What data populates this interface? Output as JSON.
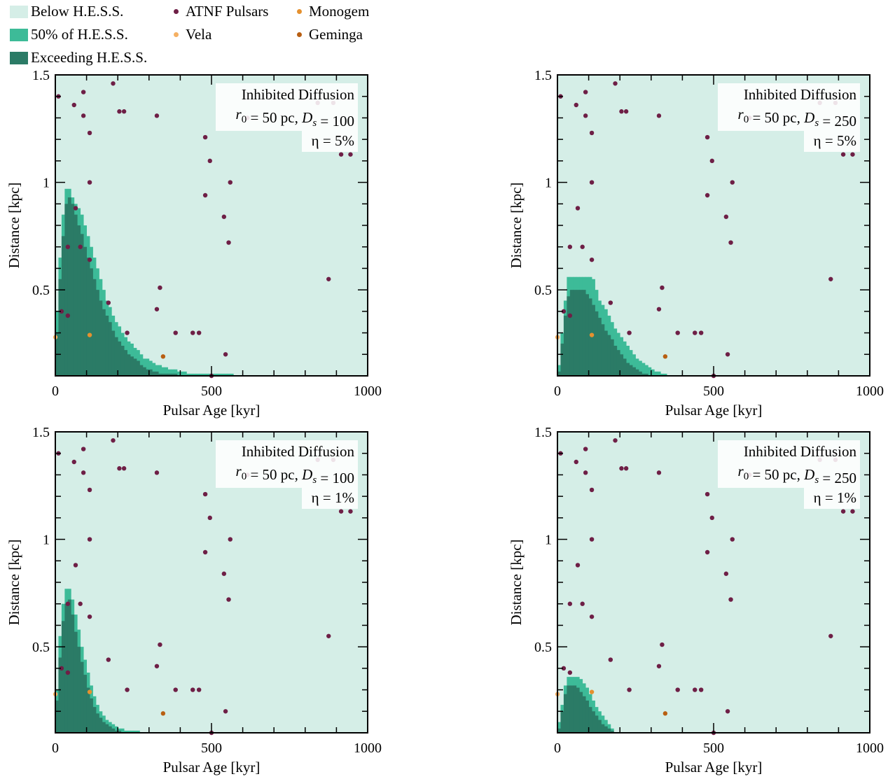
{
  "legend": {
    "below_label": "Below H.E.S.S.",
    "half_label": "50% of H.E.S.S.",
    "exceed_label": "Exceeding H.E.S.S.",
    "atnf_label": "ATNF Pulsars",
    "vela_label": "Vela",
    "monogem_label": "Monogem",
    "geminga_label": "Geminga"
  },
  "colors": {
    "below": "#d5eee7",
    "half": "#3dbb98",
    "exceed": "#2b7b66",
    "atnf": "#6e1f46",
    "vela": "#f5b063",
    "monogem": "#e5912f",
    "geminga": "#b85f12"
  },
  "shared": {
    "xlabel": "Pulsar Age [kyr]",
    "ylabel": "Distance [kpc]",
    "xticks": [
      0,
      500,
      1000
    ],
    "yticks": [
      0.5,
      1,
      1.5
    ],
    "xlim": [
      0,
      1000
    ],
    "ylim": [
      0.1,
      1.5
    ],
    "atnf_pulsars": [
      [
        10,
        1.4
      ],
      [
        60,
        1.36
      ],
      [
        90,
        1.42
      ],
      [
        90,
        1.31
      ],
      [
        110,
        1.23
      ],
      [
        185,
        1.46
      ],
      [
        205,
        1.33
      ],
      [
        220,
        1.33
      ],
      [
        325,
        1.31
      ],
      [
        480,
        1.21
      ],
      [
        495,
        1.1
      ],
      [
        560,
        1.0
      ],
      [
        110,
        1.0
      ],
      [
        480,
        0.94
      ],
      [
        65,
        0.88
      ],
      [
        540,
        0.84
      ],
      [
        555,
        0.72
      ],
      [
        40,
        0.7
      ],
      [
        80,
        0.7
      ],
      [
        110,
        0.64
      ],
      [
        875,
        0.55
      ],
      [
        335,
        0.51
      ],
      [
        170,
        0.44
      ],
      [
        325,
        0.41
      ],
      [
        20,
        0.4
      ],
      [
        40,
        0.38
      ],
      [
        230,
        0.3
      ],
      [
        385,
        0.3
      ],
      [
        440,
        0.3
      ],
      [
        460,
        0.3
      ],
      [
        545,
        0.2
      ],
      [
        500,
        0.09
      ],
      [
        615,
        1.3
      ],
      [
        840,
        1.37
      ],
      [
        890,
        1.37
      ],
      [
        915,
        1.13
      ],
      [
        945,
        1.13
      ]
    ],
    "vela": [
      [
        0,
        0.28
      ]
    ],
    "monogem": [
      [
        110,
        0.29
      ]
    ],
    "geminga": [
      [
        345,
        0.19
      ]
    ]
  },
  "chart_data": [
    {
      "type": "area",
      "title": "Inhibited Diffusion",
      "params": [
        "r",
        "0",
        " = 50 pc, ",
        "D",
        "s",
        " = 100"
      ],
      "eta": "η = 5%",
      "x": [
        10,
        20,
        30,
        40,
        50,
        60,
        70,
        80,
        90,
        100,
        110,
        120,
        130,
        140,
        150,
        160,
        170,
        180,
        190,
        200,
        210,
        220,
        230,
        240,
        250,
        260,
        270,
        280,
        290,
        300,
        310,
        320,
        330,
        340,
        350,
        360,
        370,
        380,
        390,
        400,
        410,
        420,
        430,
        440,
        450,
        460,
        470,
        480,
        490,
        500,
        510,
        520,
        530,
        540,
        550,
        560,
        570,
        580
      ],
      "half_values": [
        0.4,
        0.65,
        0.85,
        0.97,
        0.97,
        0.93,
        0.9,
        0.88,
        0.85,
        0.8,
        0.75,
        0.7,
        0.65,
        0.6,
        0.55,
        0.5,
        0.45,
        0.42,
        0.38,
        0.35,
        0.33,
        0.3,
        0.28,
        0.26,
        0.25,
        0.23,
        0.22,
        0.2,
        0.18,
        0.18,
        0.17,
        0.16,
        0.15,
        0.15,
        0.14,
        0.14,
        0.13,
        0.13,
        0.13,
        0.12,
        0.12,
        0.12,
        0.11,
        0.11,
        0.11,
        0.11,
        0.11,
        0.11,
        0.11,
        0.11,
        0.11,
        0.11,
        0.11,
        0.11,
        0.11,
        0.11,
        0.11,
        0.1
      ],
      "exceed_values": [
        0.3,
        0.55,
        0.75,
        0.9,
        0.93,
        0.9,
        0.85,
        0.8,
        0.76,
        0.7,
        0.65,
        0.6,
        0.55,
        0.5,
        0.45,
        0.41,
        0.38,
        0.35,
        0.31,
        0.28,
        0.26,
        0.24,
        0.22,
        0.2,
        0.19,
        0.18,
        0.17,
        0.15,
        0.14,
        0.13,
        0.13,
        0.12,
        0.12,
        0.11,
        0.11,
        0.11,
        0.11,
        0.11,
        0.11,
        0.1,
        0.1,
        0.1,
        0.1,
        0.1,
        0.1,
        0.1,
        0.1,
        0.1,
        0.1,
        0.1,
        0.1,
        0.1,
        0.1,
        0.1,
        0.1,
        0.1,
        0.1,
        0.1
      ]
    },
    {
      "type": "area",
      "title": "Inhibited Diffusion",
      "params": [
        "r",
        "0",
        " = 50 pc, ",
        "D",
        "s",
        " = 250"
      ],
      "eta": "η = 5%",
      "x": [
        10,
        20,
        30,
        40,
        50,
        60,
        70,
        80,
        90,
        100,
        110,
        120,
        130,
        140,
        150,
        160,
        170,
        180,
        190,
        200,
        210,
        220,
        230,
        240,
        250,
        260,
        270,
        280,
        290,
        300,
        310,
        320,
        330,
        340,
        350
      ],
      "half_values": [
        0.15,
        0.3,
        0.45,
        0.56,
        0.56,
        0.56,
        0.56,
        0.56,
        0.56,
        0.56,
        0.56,
        0.55,
        0.5,
        0.45,
        0.43,
        0.41,
        0.38,
        0.35,
        0.32,
        0.3,
        0.28,
        0.26,
        0.24,
        0.22,
        0.2,
        0.18,
        0.17,
        0.16,
        0.15,
        0.14,
        0.13,
        0.12,
        0.12,
        0.11,
        0.11
      ],
      "exceed_values": [
        0.12,
        0.25,
        0.38,
        0.47,
        0.5,
        0.5,
        0.5,
        0.5,
        0.5,
        0.48,
        0.46,
        0.43,
        0.4,
        0.37,
        0.34,
        0.31,
        0.29,
        0.27,
        0.24,
        0.22,
        0.2,
        0.18,
        0.16,
        0.15,
        0.14,
        0.13,
        0.12,
        0.11,
        0.11,
        0.1,
        0.1,
        0.1,
        0.1,
        0.1,
        0.1
      ]
    },
    {
      "type": "area",
      "title": "Inhibited Diffusion",
      "params": [
        "r",
        "0",
        " = 50 pc, ",
        "D",
        "s",
        " = 100"
      ],
      "eta": "η = 1%",
      "x": [
        10,
        20,
        30,
        40,
        50,
        60,
        70,
        80,
        90,
        100,
        110,
        120,
        130,
        140,
        150,
        160,
        170,
        180,
        190,
        200,
        210,
        220,
        230,
        240,
        250,
        260,
        270
      ],
      "half_values": [
        0.3,
        0.55,
        0.7,
        0.77,
        0.77,
        0.72,
        0.65,
        0.58,
        0.5,
        0.44,
        0.38,
        0.32,
        0.27,
        0.23,
        0.2,
        0.18,
        0.16,
        0.15,
        0.14,
        0.13,
        0.12,
        0.12,
        0.11,
        0.11,
        0.11,
        0.11,
        0.11
      ],
      "exceed_values": [
        0.25,
        0.45,
        0.62,
        0.7,
        0.72,
        0.65,
        0.57,
        0.5,
        0.43,
        0.37,
        0.31,
        0.26,
        0.22,
        0.19,
        0.17,
        0.15,
        0.14,
        0.13,
        0.12,
        0.11,
        0.11,
        0.1,
        0.1,
        0.1,
        0.1,
        0.1,
        0.1
      ]
    },
    {
      "type": "area",
      "title": "Inhibited Diffusion",
      "params": [
        "r",
        "0",
        " = 50 pc, ",
        "D",
        "s",
        " = 250"
      ],
      "eta": "η = 1%",
      "x": [
        10,
        20,
        30,
        40,
        50,
        60,
        70,
        80,
        90,
        100,
        110,
        120,
        130,
        140,
        150,
        160,
        170,
        180
      ],
      "half_values": [
        0.15,
        0.23,
        0.32,
        0.36,
        0.36,
        0.36,
        0.36,
        0.35,
        0.33,
        0.31,
        0.28,
        0.25,
        0.22,
        0.2,
        0.18,
        0.16,
        0.14,
        0.12
      ],
      "exceed_values": [
        0.12,
        0.2,
        0.28,
        0.32,
        0.32,
        0.32,
        0.31,
        0.29,
        0.27,
        0.25,
        0.22,
        0.2,
        0.18,
        0.16,
        0.14,
        0.13,
        0.12,
        0.11
      ]
    }
  ]
}
